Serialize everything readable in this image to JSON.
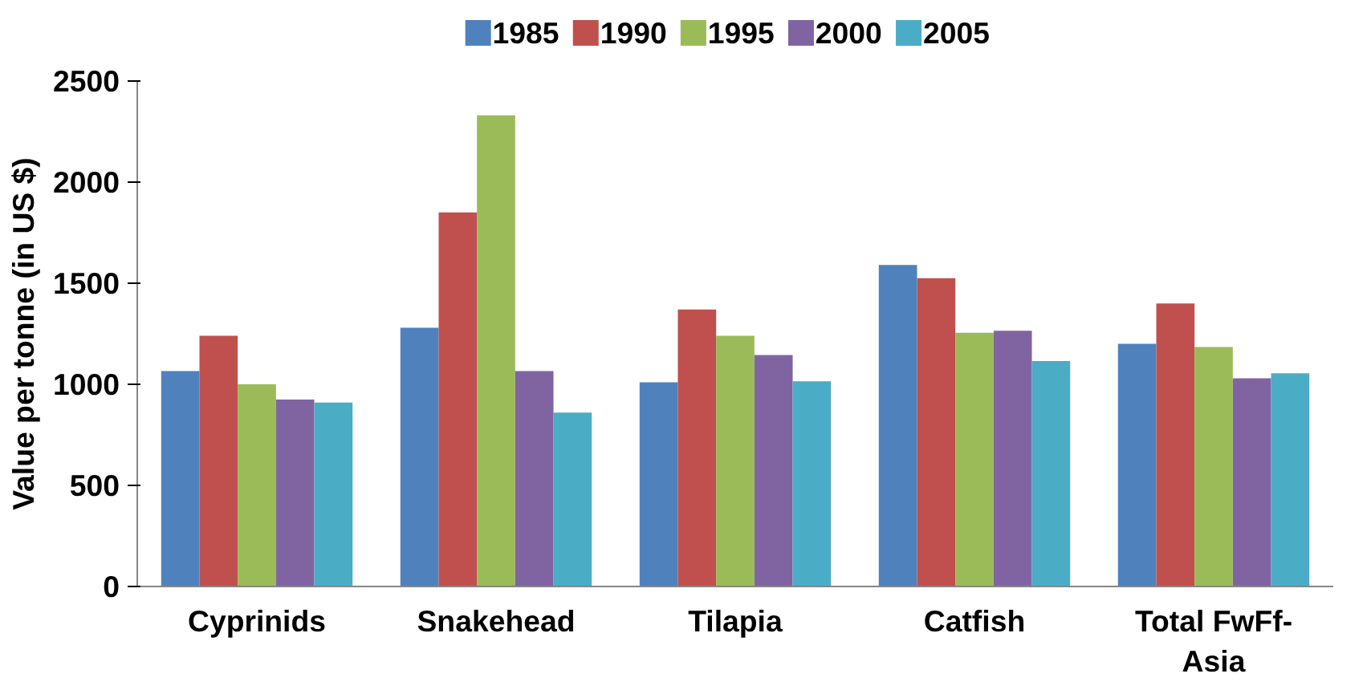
{
  "chart_data": {
    "type": "bar",
    "ylabel": "Value per tonne (in US $)",
    "categories": [
      "Cyprinids",
      "Snakehead",
      "Tilapia",
      "Catfish",
      "Total FwFf-\nAsia"
    ],
    "series": [
      {
        "name": "1985",
        "color": "#4f81bd",
        "values": [
          1065,
          1280,
          1010,
          1590,
          1200
        ]
      },
      {
        "name": "1990",
        "color": "#c0504d",
        "values": [
          1240,
          1850,
          1370,
          1525,
          1400
        ]
      },
      {
        "name": "1995",
        "color": "#9bbb59",
        "values": [
          1000,
          2330,
          1240,
          1255,
          1185
        ]
      },
      {
        "name": "2000",
        "color": "#8064a2",
        "values": [
          925,
          1065,
          1145,
          1265,
          1030
        ]
      },
      {
        "name": "2005",
        "color": "#4bacc6",
        "values": [
          910,
          860,
          1015,
          1115,
          1055
        ]
      }
    ],
    "ylim": [
      0,
      2500
    ],
    "yticks": [
      0,
      500,
      1000,
      1500,
      2000,
      2500
    ],
    "grid": false,
    "legend": "top"
  }
}
